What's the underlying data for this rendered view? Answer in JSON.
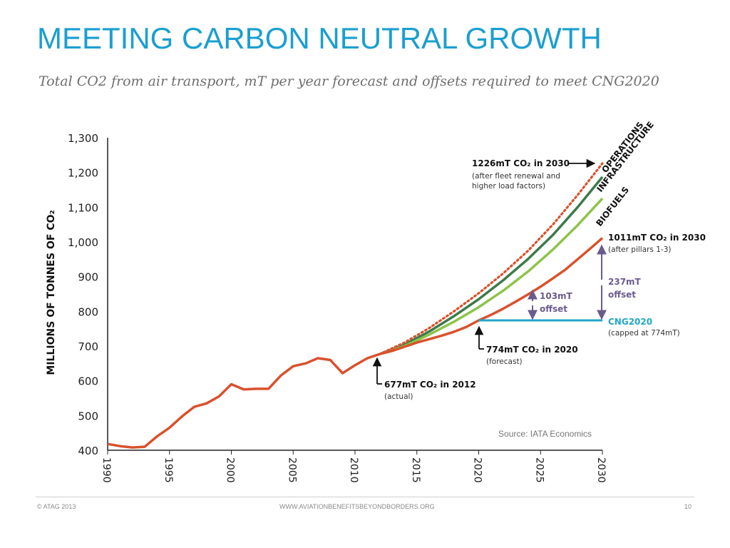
{
  "slide": {
    "title": "MEETING CARBON NEUTRAL GROWTH",
    "subtitle": "Total CO2 from air transport, mT per year forecast and offsets required to meet CNG2020"
  },
  "footer": {
    "left": "© ATAG 2013",
    "center": "WWW.AVIATIONBENEFITSBEYONDBORDERS.ORG",
    "page": "10"
  },
  "colors": {
    "title": "#1a9fd0",
    "actual": "#d9512c",
    "operations": "#d9512c",
    "infrastructure": "#3d7a4a",
    "biofuels": "#8cc34a",
    "cng": "#22a6c8",
    "offset": "#6b5b8c"
  },
  "chart_data": {
    "type": "line",
    "ylabel": "MILLIONS OF TONNES OF CO₂",
    "ylim": [
      400,
      1300
    ],
    "xlim": [
      1990,
      2030
    ],
    "yticks": [
      "400",
      "500",
      "600",
      "700",
      "800",
      "900",
      "1,000",
      "1,100",
      "1,200",
      "1,300"
    ],
    "xticks": [
      "1990",
      "1995",
      "2000",
      "2005",
      "2010",
      "2015",
      "2020",
      "2025",
      "2030"
    ],
    "series": [
      {
        "key": "actual",
        "x": [
          1990,
          1991,
          1992,
          1993,
          1994,
          1995,
          1996,
          1997,
          1998,
          1999,
          2000,
          2001,
          2002,
          2003,
          2004,
          2005,
          2006,
          2007,
          2008,
          2009,
          2010,
          2011,
          2012,
          2013,
          2014,
          2015,
          2016,
          2017,
          2018,
          2019,
          2020,
          2021,
          2022,
          2023,
          2024,
          2025,
          2026,
          2027,
          2028,
          2029,
          2030
        ],
        "values": [
          418,
          412,
          408,
          410,
          440,
          465,
          497,
          525,
          535,
          555,
          590,
          575,
          577,
          577,
          615,
          642,
          650,
          665,
          660,
          622,
          645,
          665,
          677,
          686,
          698,
          710,
          720,
          730,
          741,
          755,
          774,
          790,
          808,
          828,
          849,
          871,
          895,
          920,
          950,
          980,
          1011
        ]
      },
      {
        "key": "operations",
        "name": "OPERATIONS",
        "x": [
          2012,
          2014,
          2016,
          2018,
          2020,
          2022,
          2024,
          2026,
          2028,
          2030
        ],
        "values": [
          677,
          710,
          752,
          800,
          852,
          910,
          975,
          1050,
          1135,
          1226
        ]
      },
      {
        "key": "infrastructure",
        "name": "INFRASTRUCTURE",
        "x": [
          2012,
          2014,
          2016,
          2018,
          2020,
          2022,
          2024,
          2026,
          2028,
          2030
        ],
        "values": [
          677,
          704,
          742,
          786,
          835,
          890,
          951,
          1020,
          1100,
          1187
        ]
      },
      {
        "key": "biofuels",
        "name": "BIOFUELS",
        "x": [
          2012,
          2014,
          2016,
          2018,
          2020,
          2022,
          2024,
          2026,
          2028,
          2030
        ],
        "values": [
          677,
          700,
          733,
          770,
          812,
          860,
          915,
          978,
          1048,
          1125
        ]
      },
      {
        "key": "cng",
        "name": "CNG2020",
        "x": [
          2020,
          2030
        ],
        "values": [
          774,
          774
        ]
      }
    ],
    "annotations": {
      "a1226_title": "1226mT CO₂ in 2030",
      "a1226_note1": "(after fleet renewal and",
      "a1226_note2": "higher load factors)",
      "a1011_title": "1011mT CO₂ in 2030",
      "a1011_note": "(after pillars 1-3)",
      "offset237_l1": "237mT",
      "offset237_l2": "offset",
      "offset103_l1": "103mT",
      "offset103_l2": "offset",
      "cng_title": "CNG2020",
      "cng_note": "(capped at 774mT)",
      "a774_title": "774mT CO₂ in 2020",
      "a774_note": "(forecast)",
      "a677_title": "677mT CO₂ in 2012",
      "a677_note": "(actual)",
      "source": "Source: IATA Economics"
    }
  }
}
